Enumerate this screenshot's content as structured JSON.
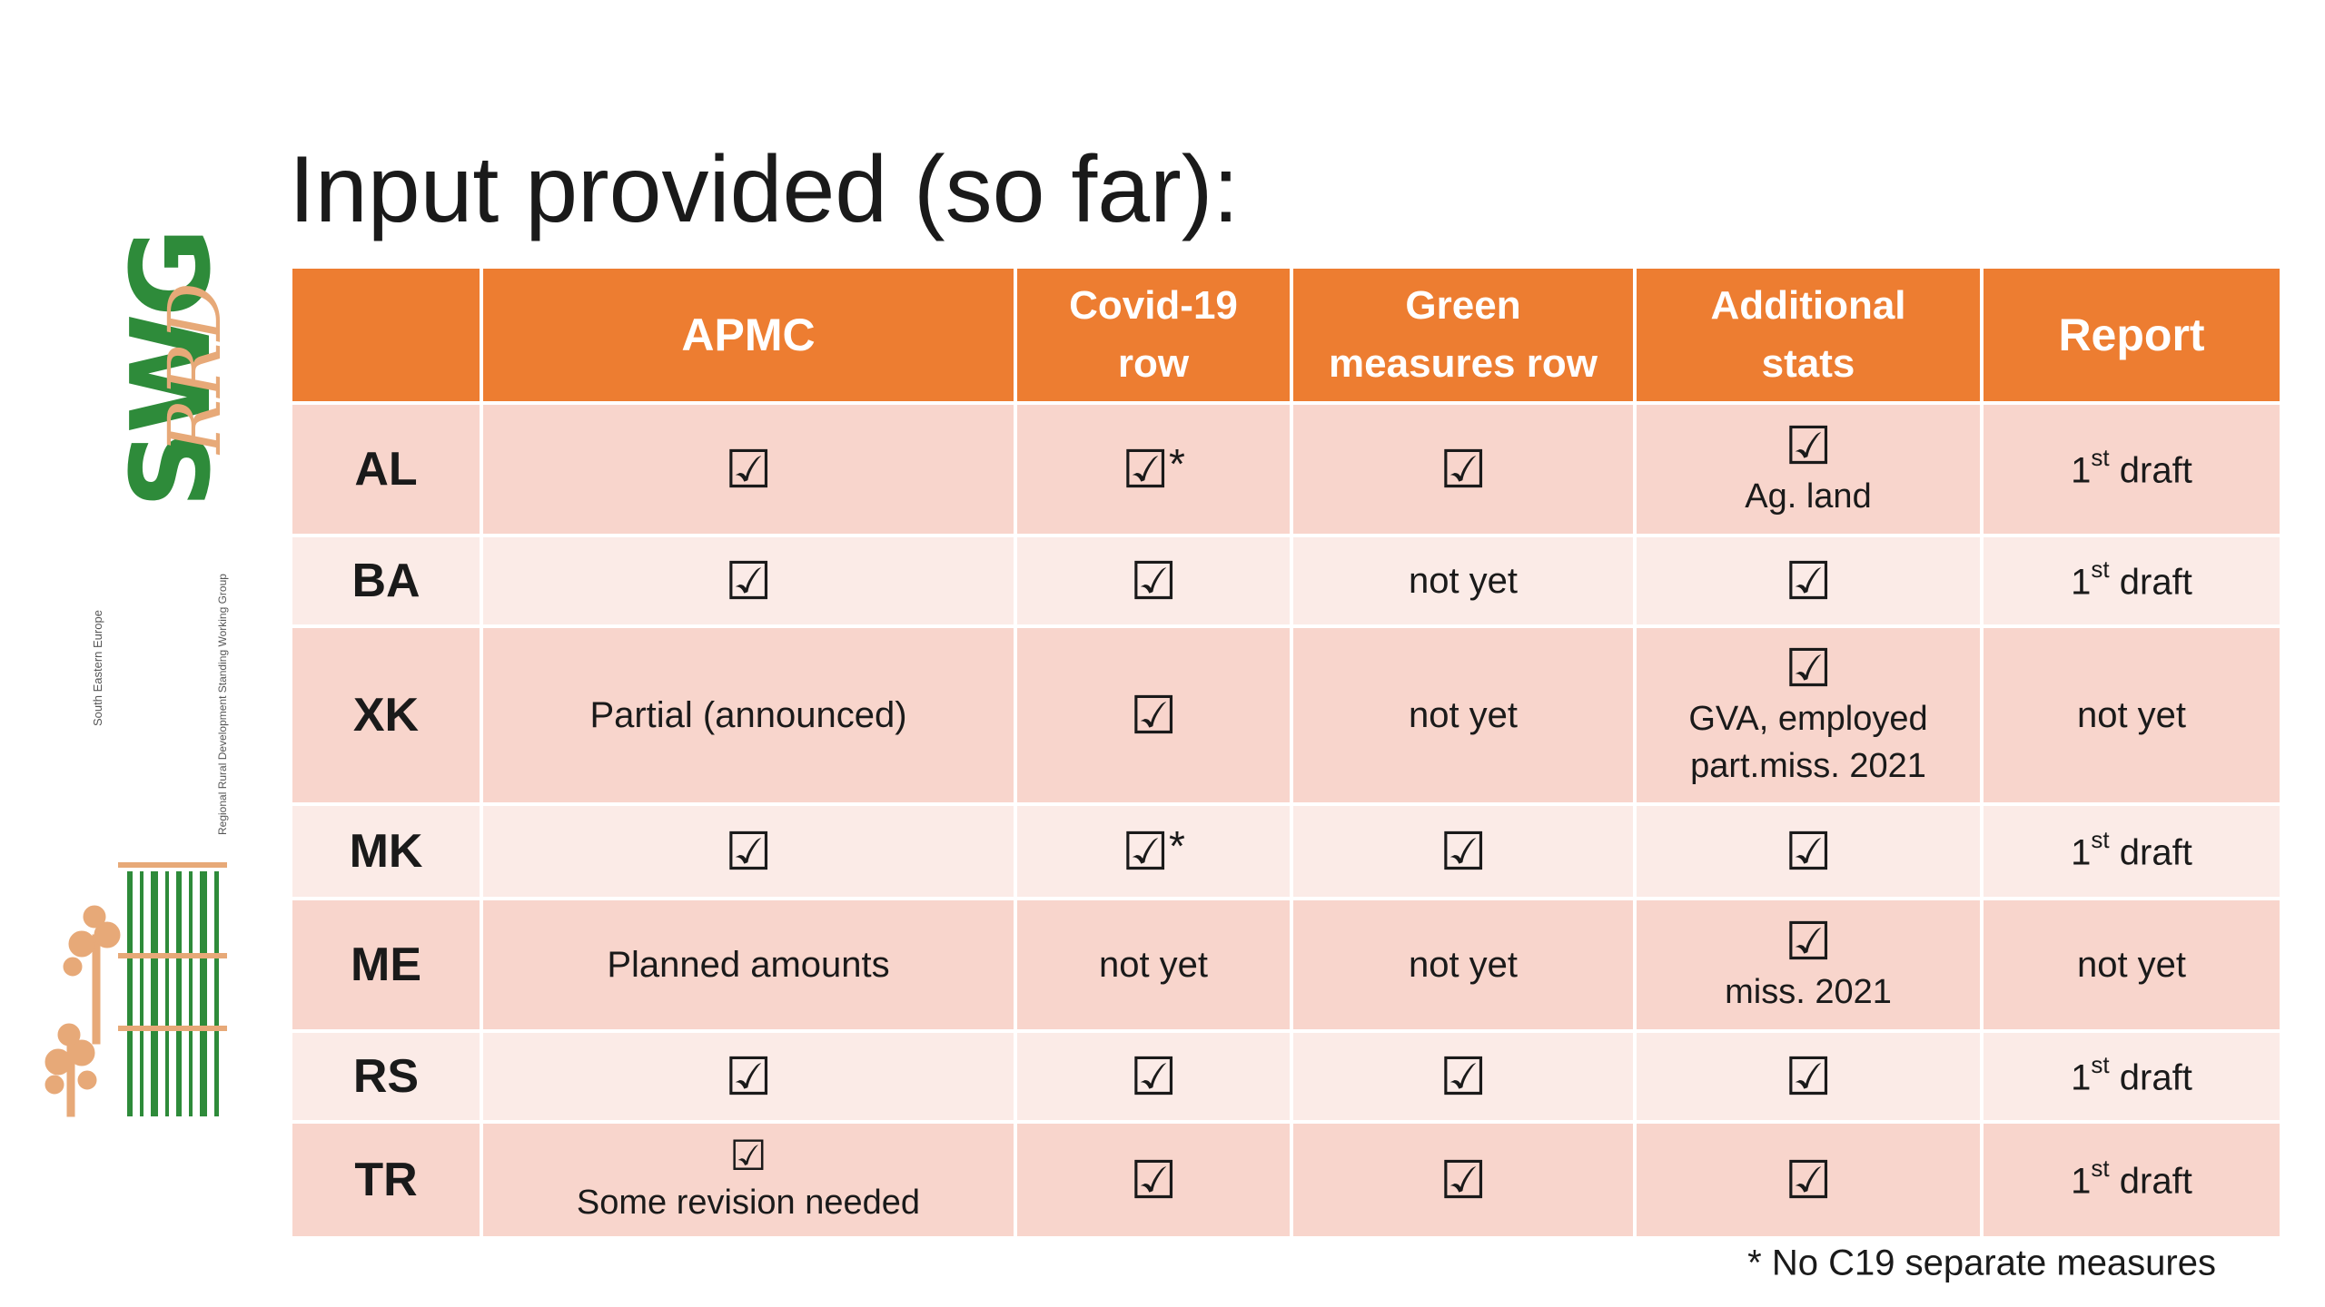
{
  "title": "Input provided (so far):",
  "logo": {
    "text_main": "SWG",
    "text_script": "RRD",
    "text_small": "South Eastern Europe",
    "text_small2": "Regional Rural Development Standing Working Group",
    "colors": {
      "green": "#2e8b3a",
      "orange": "#e7a978"
    }
  },
  "colors": {
    "header": "#ed7d31",
    "row_dark": "#f8d5cc",
    "row_light": "#fbebe7"
  },
  "table": {
    "headers": [
      "",
      "APMC",
      "Covid-19 row",
      "Green measures row",
      "Additional stats",
      "Report"
    ],
    "header_lines": {
      "covid": [
        "Covid-19",
        "row"
      ],
      "green": [
        "Green",
        "measures row"
      ],
      "additional": [
        "Additional",
        "stats"
      ]
    },
    "check_glyph": "☑",
    "asterisk": "*",
    "rows": [
      {
        "country": "AL",
        "apmc": "check",
        "apmc_note": "",
        "covid": "check*",
        "green": "check",
        "additional": "check",
        "additional_note": "Ag. land",
        "report_main": "1",
        "report_sup": "st",
        "report_rest": " draft"
      },
      {
        "country": "BA",
        "apmc": "check",
        "apmc_note": "",
        "covid": "check",
        "green": "not yet",
        "additional": "check",
        "additional_note": "",
        "report_main": "1",
        "report_sup": "st",
        "report_rest": " draft"
      },
      {
        "country": "XK",
        "apmc": "Partial (announced)",
        "apmc_note": "",
        "covid": "check",
        "green": "not yet",
        "additional": "check",
        "additional_note": "GVA, employed\npart.miss. 2021",
        "report_text": "not yet"
      },
      {
        "country": "MK",
        "apmc": "check",
        "apmc_note": "",
        "covid": "check*",
        "green": "check",
        "additional": "check",
        "additional_note": "",
        "report_main": "1",
        "report_sup": "st",
        "report_rest": " draft"
      },
      {
        "country": "ME",
        "apmc": "Planned amounts",
        "apmc_note": "",
        "covid": "not yet",
        "green": "not yet",
        "additional": "check",
        "additional_note": "miss. 2021",
        "report_text": "not yet"
      },
      {
        "country": "RS",
        "apmc": "check",
        "apmc_note": "",
        "covid": "check",
        "green": "check",
        "additional": "check",
        "additional_note": "",
        "report_main": "1",
        "report_sup": "st",
        "report_rest": " draft"
      },
      {
        "country": "TR",
        "apmc": "check",
        "apmc_note": "Some revision needed",
        "covid": "check",
        "green": "check",
        "additional": "check",
        "additional_note": "",
        "report_main": "1",
        "report_sup": "st",
        "report_rest": " draft"
      }
    ]
  },
  "footnote": "* No C19 separate measures"
}
